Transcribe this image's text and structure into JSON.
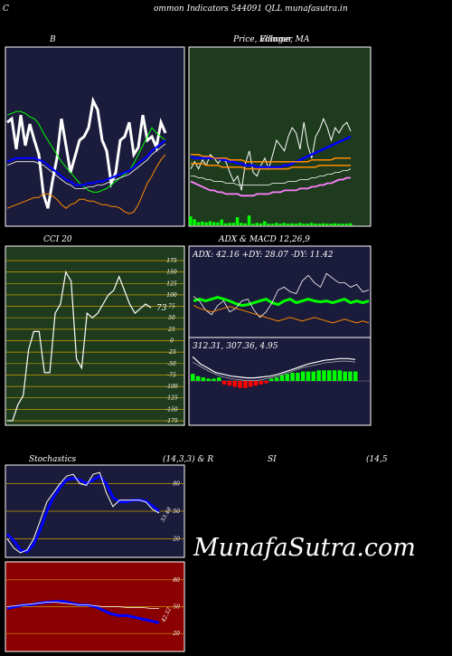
{
  "page": {
    "header": "ommon  Indicators 544091 QLL  munafasutra.in",
    "header_left_char": "C",
    "watermark": "MunafaSutra.com"
  },
  "colors": {
    "panel_navy": "#1b1b3b",
    "panel_green": "#1e3b1e",
    "panel_red": "#8b0000",
    "white": "#ffffff",
    "blue": "#0000ff",
    "green_line": "#00ff00",
    "orange": "#ff8c00",
    "grid_gold": "#c8a000"
  },
  "chart_data": [
    {
      "id": "bb",
      "type": "line",
      "title": "B",
      "series": [
        {
          "key": "price",
          "values": [
            42,
            40,
            57,
            38,
            55,
            43,
            52,
            60,
            82,
            90,
            75,
            62,
            40,
            55,
            70,
            61,
            52,
            50,
            45,
            30,
            35,
            52,
            58,
            76,
            70,
            52,
            50,
            42,
            60,
            56,
            38,
            52,
            50,
            56,
            42,
            48
          ]
        },
        {
          "key": "upper",
          "values": [
            38,
            37,
            36,
            36,
            37,
            39,
            40,
            43,
            48,
            52,
            56,
            60,
            64,
            67,
            70,
            73,
            76,
            78,
            80,
            81,
            81,
            80,
            79,
            77,
            75,
            73,
            71,
            69,
            65,
            60,
            55,
            50,
            45,
            48,
            50,
            52
          ]
        },
        {
          "key": "mid",
          "values": [
            64,
            63,
            62,
            62,
            62,
            62,
            62,
            63,
            64,
            66,
            68,
            70,
            72,
            74,
            75,
            77,
            77,
            77,
            76,
            76,
            75,
            75,
            74,
            73,
            72,
            71,
            70,
            69,
            67,
            65,
            63,
            61,
            58,
            56,
            54,
            52
          ]
        },
        {
          "key": "mid2",
          "values": [
            66,
            65,
            64,
            64,
            64,
            64,
            64,
            65,
            66,
            68,
            70,
            72,
            74,
            76,
            77,
            79,
            79,
            79,
            78,
            78,
            77,
            77,
            76,
            75,
            74,
            73,
            72,
            71,
            69,
            67,
            65,
            63,
            60,
            58,
            56,
            54
          ]
        },
        {
          "key": "lower",
          "values": [
            90,
            89,
            88,
            87,
            86,
            85,
            84,
            84,
            82,
            82,
            83,
            85,
            88,
            90,
            88,
            87,
            85,
            85,
            86,
            86,
            87,
            88,
            88,
            89,
            89,
            90,
            92,
            93,
            92,
            88,
            82,
            76,
            72,
            67,
            63,
            60
          ]
        }
      ]
    },
    {
      "id": "price_ma",
      "type": "line",
      "title": "Price,  Volume,  MA",
      "title_overlay": "Ellinger",
      "series": [
        {
          "key": "price",
          "values": [
            68,
            64,
            68,
            63,
            66,
            60,
            62,
            65,
            62,
            64,
            70,
            75,
            72,
            80,
            65,
            58,
            70,
            72,
            66,
            62,
            68,
            60,
            52,
            55,
            58,
            50,
            45,
            48,
            57,
            42,
            55,
            62,
            50,
            46,
            40,
            45,
            52,
            45,
            48,
            44,
            42,
            47
          ]
        },
        {
          "key": "ma_blue",
          "values": [
            61,
            62,
            62,
            62,
            62,
            62,
            62,
            62,
            63,
            63,
            64,
            64,
            65,
            65,
            66,
            66,
            66,
            67,
            67,
            67,
            67,
            67,
            67,
            67,
            66,
            66,
            65,
            64,
            63,
            62,
            61,
            60,
            59,
            58,
            57,
            56,
            55,
            54,
            53,
            52,
            51,
            50
          ]
        },
        {
          "key": "band_orange_top",
          "values": [
            60,
            60,
            60,
            61,
            61,
            61,
            62,
            62,
            62,
            62,
            63,
            63,
            63,
            63,
            64,
            64,
            64,
            64,
            64,
            64,
            64,
            64,
            64,
            64,
            64,
            64,
            64,
            64,
            64,
            64,
            64,
            63,
            63,
            63,
            63,
            63,
            63,
            62,
            62,
            62,
            62,
            62
          ]
        },
        {
          "key": "band_orange_bot",
          "values": [
            65,
            65,
            65,
            65,
            66,
            66,
            66,
            66,
            67,
            67,
            67,
            67,
            67,
            67,
            68,
            68,
            68,
            68,
            68,
            68,
            68,
            68,
            68,
            68,
            68,
            68,
            67,
            67,
            67,
            67,
            67,
            67,
            67,
            66,
            66,
            66,
            66,
            66,
            66,
            66,
            66,
            66
          ]
        },
        {
          "key": "ma_pink",
          "values": [
            75,
            76,
            77,
            78,
            79,
            80,
            80,
            81,
            81,
            82,
            82,
            82,
            82,
            83,
            83,
            83,
            83,
            82,
            82,
            82,
            82,
            81,
            81,
            81,
            80,
            80,
            80,
            80,
            79,
            79,
            79,
            78,
            78,
            77,
            77,
            76,
            76,
            75,
            74,
            74,
            73,
            73
          ]
        },
        {
          "key": "ma_white_low",
          "values": [
            72,
            72,
            73,
            73,
            74,
            74,
            75,
            75,
            75,
            76,
            76,
            76,
            77,
            77,
            77,
            77,
            77,
            77,
            77,
            77,
            77,
            76,
            76,
            76,
            76,
            75,
            75,
            75,
            74,
            74,
            74,
            73,
            73,
            72,
            72,
            71,
            71,
            70,
            70,
            69,
            69,
            68
          ]
        }
      ],
      "volume": [
        22,
        15,
        8,
        9,
        7,
        10,
        8,
        7,
        14,
        5,
        6,
        6,
        20,
        6,
        5,
        24,
        4,
        6,
        5,
        10,
        4,
        4,
        6,
        4,
        6,
        4,
        5,
        4,
        6,
        4,
        4,
        6,
        4,
        4,
        5,
        4,
        4,
        5,
        4,
        4,
        4,
        5
      ]
    },
    {
      "id": "cci",
      "type": "line",
      "title": "CCI 20",
      "yticks": [
        "175",
        "150",
        "125",
        "100",
        "75",
        "50",
        "25",
        "0",
        "-25",
        "-50",
        "-75",
        "-100",
        "-125",
        "-150",
        "-175"
      ],
      "last_value_label": "73",
      "values": [
        -175,
        -175,
        -140,
        -120,
        -20,
        20,
        20,
        -70,
        -70,
        60,
        80,
        150,
        130,
        -40,
        -60,
        60,
        50,
        60,
        80,
        100,
        110,
        140,
        110,
        80,
        60,
        70,
        80,
        72
      ]
    },
    {
      "id": "adx",
      "type": "line",
      "title": "ADX  & MACD 12,26,9",
      "label": "ADX: 42.16  +DY: 28.07 -DY: 11.42",
      "series": [
        {
          "key": "adx_green",
          "values": [
            60,
            58,
            60,
            58,
            56,
            58,
            60,
            63,
            65,
            64,
            62,
            60,
            58,
            62,
            64,
            60,
            58,
            62,
            60,
            58,
            60,
            61,
            60,
            62,
            60,
            58,
            62,
            60,
            62,
            60
          ]
        },
        {
          "key": "plus_dy_white",
          "values": [
            55,
            60,
            70,
            75,
            65,
            60,
            72,
            68,
            60,
            58,
            70,
            78,
            72,
            62,
            48,
            45,
            50,
            52,
            38,
            32,
            40,
            45,
            30,
            35,
            40,
            40,
            45,
            42,
            50,
            48
          ]
        },
        {
          "key": "minus_dy_orange",
          "values": [
            65,
            68,
            70,
            72,
            70,
            68,
            66,
            68,
            70,
            72,
            74,
            76,
            78,
            80,
            82,
            80,
            78,
            80,
            82,
            80,
            78,
            80,
            82,
            84,
            82,
            80,
            82,
            84,
            82,
            84
          ]
        }
      ]
    },
    {
      "id": "macd",
      "type": "bar",
      "label": "312.31,  307.36,  4.95",
      "series": [
        {
          "key": "macd_white",
          "values": [
            22,
            30,
            35,
            40,
            42,
            44,
            45,
            46,
            46,
            45,
            44,
            42,
            39,
            36,
            33,
            30,
            28,
            26,
            25,
            24,
            24,
            25
          ]
        },
        {
          "key": "signal_gray",
          "values": [
            28,
            33,
            38,
            42,
            45,
            47,
            48,
            49,
            49,
            48,
            46,
            44,
            41,
            38,
            35,
            33,
            31,
            29,
            28,
            27,
            27,
            28
          ]
        }
      ],
      "histogram": [
        6,
        4,
        3,
        2,
        2,
        3,
        -3,
        -4,
        -5,
        -6,
        -6,
        -5,
        -4,
        -3,
        -2,
        2,
        3,
        5,
        6,
        7,
        7,
        8,
        8,
        8,
        9,
        9,
        9,
        9,
        9,
        8,
        8,
        8
      ]
    },
    {
      "id": "stoch",
      "type": "line",
      "title": "Stochastics",
      "params": "(14,3,3) & R",
      "yticks": [
        "80",
        "50",
        "20"
      ],
      "last_value_label": "53.48",
      "series": [
        {
          "key": "k_white",
          "values": [
            20,
            10,
            5,
            8,
            20,
            40,
            60,
            70,
            80,
            88,
            90,
            80,
            78,
            90,
            92,
            70,
            55,
            62,
            62,
            62,
            62,
            60,
            52,
            48
          ]
        },
        {
          "key": "d_blue",
          "values": [
            25,
            18,
            8,
            6,
            14,
            30,
            50,
            65,
            76,
            84,
            86,
            84,
            80,
            84,
            88,
            80,
            65,
            60,
            60,
            62,
            62,
            61,
            56,
            50
          ]
        }
      ]
    },
    {
      "id": "rsi",
      "type": "line",
      "title": "SI",
      "params": "(14,5",
      "yticks": [
        "80",
        "50",
        "20"
      ],
      "last_value_label": "42.52",
      "series": [
        {
          "key": "rsi_blue",
          "values": [
            48,
            50,
            52,
            52,
            54,
            55,
            56,
            56,
            54,
            52,
            52,
            50,
            46,
            42,
            40,
            40,
            38,
            36,
            34,
            32
          ]
        },
        {
          "key": "rsi_white",
          "values": [
            50,
            51,
            52,
            53,
            54,
            55,
            55,
            54,
            53,
            52,
            52,
            51,
            50,
            50,
            50,
            49,
            49,
            49,
            48,
            48
          ]
        }
      ]
    }
  ]
}
